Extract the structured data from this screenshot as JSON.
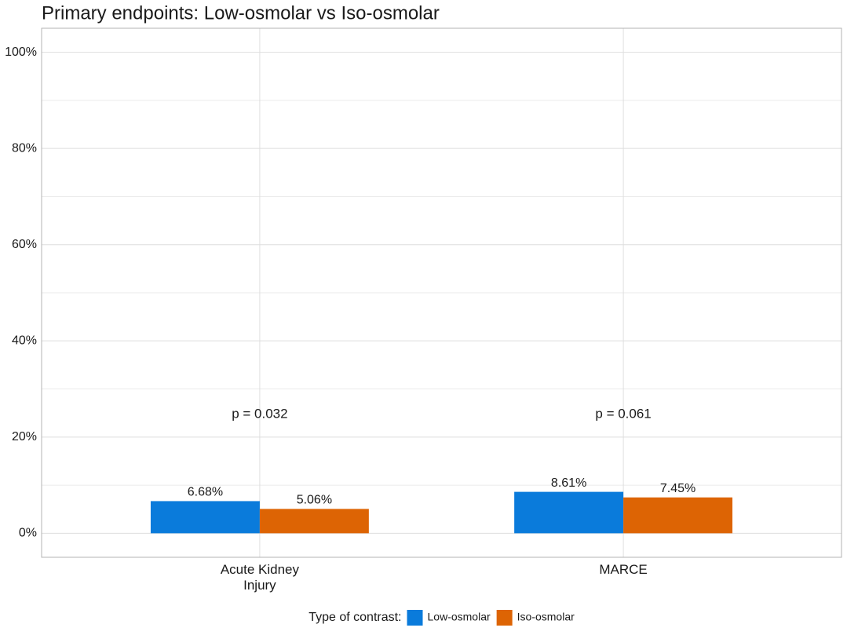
{
  "chart_data": {
    "type": "bar",
    "title": "Primary endpoints: Low-osmolar vs Iso-osmolar",
    "categories": [
      "Acute Kidney\nInjury",
      "MARCE"
    ],
    "series": [
      {
        "name": "Low-osmolar",
        "color": "#0a7bdb",
        "values": [
          6.68,
          8.61
        ],
        "value_labels": [
          "6.68%",
          "8.61%"
        ]
      },
      {
        "name": "Iso-osmolar",
        "color": "#dd6404",
        "values": [
          5.06,
          7.45
        ],
        "value_labels": [
          "5.06%",
          "7.45%"
        ]
      }
    ],
    "annotations": [
      "p = 0.032",
      "p = 0.061"
    ],
    "legend_title": "Type of contrast:",
    "legend_position": "bottom",
    "ylim": [
      -5,
      105
    ],
    "yticks": [
      {
        "value": 0,
        "label": "0%"
      },
      {
        "value": 20,
        "label": "20%"
      },
      {
        "value": 40,
        "label": "40%"
      },
      {
        "value": 60,
        "label": "60%"
      },
      {
        "value": 80,
        "label": "80%"
      },
      {
        "value": 100,
        "label": "100%"
      }
    ],
    "yminor": [
      10,
      30,
      50,
      70,
      90
    ],
    "grid": true
  }
}
